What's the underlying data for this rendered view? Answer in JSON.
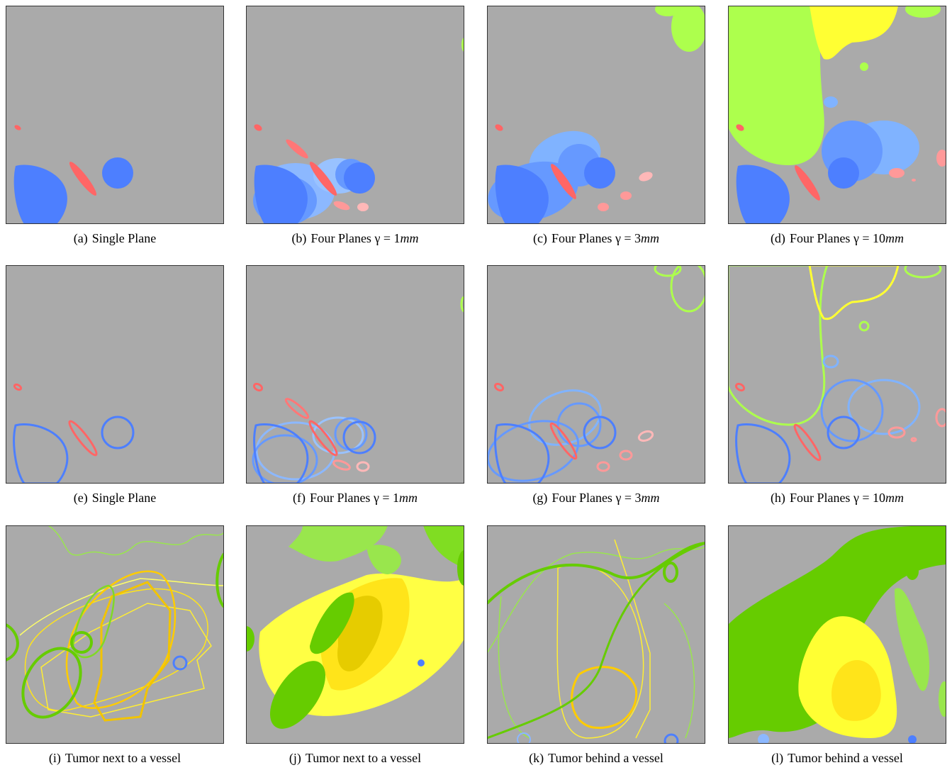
{
  "captions": [
    {
      "label": "(a)",
      "text": "Single Plane"
    },
    {
      "label": "(b)",
      "text": "Four Planes γ = 1",
      "unit": "mm"
    },
    {
      "label": "(c)",
      "text": "Four Planes γ = 3",
      "unit": "mm"
    },
    {
      "label": "(d)",
      "text": "Four Planes γ = 10",
      "unit": "mm"
    },
    {
      "label": "(e)",
      "text": "Single Plane"
    },
    {
      "label": "(f)",
      "text": "Four Planes γ = 1",
      "unit": "mm"
    },
    {
      "label": "(g)",
      "text": "Four Planes γ = 3",
      "unit": "mm"
    },
    {
      "label": "(h)",
      "text": "Four Planes γ = 10",
      "unit": "mm"
    },
    {
      "label": "(i)",
      "text": "Tumor next to a vessel"
    },
    {
      "label": "(j)",
      "text": "Tumor next to a vessel"
    },
    {
      "label": "(k)",
      "text": "Tumor behind a vessel"
    },
    {
      "label": "(l)",
      "text": "Tumor behind a vessel"
    }
  ]
}
